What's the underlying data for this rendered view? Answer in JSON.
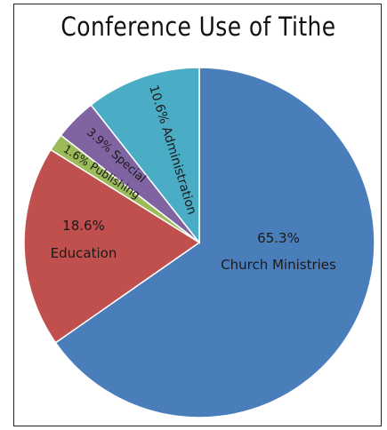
{
  "chart_data": {
    "type": "pie",
    "title": "Conference Use of Tithe",
    "slices": [
      {
        "name": "Church Ministries",
        "value": 65.3,
        "label": "65.3%",
        "color": "#4a7ebb"
      },
      {
        "name": "Education",
        "value": 18.6,
        "label": "18.6%",
        "color": "#c0504d"
      },
      {
        "name": "Publishing",
        "value": 1.6,
        "label": "1.6% Publishing",
        "color": "#9bbb59"
      },
      {
        "name": "Special",
        "value": 3.9,
        "label": "3.9% Special",
        "color": "#8064a2"
      },
      {
        "name": "Administration",
        "value": 10.6,
        "label": "10.6% Administration",
        "color": "#4bacc6"
      }
    ],
    "start_angle_deg": 0,
    "direction": "clockwise",
    "legend": "none"
  }
}
